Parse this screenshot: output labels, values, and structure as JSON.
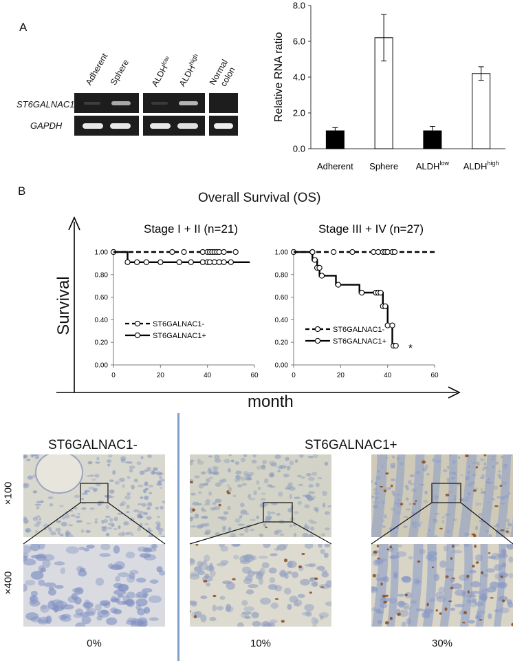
{
  "panel_a": {
    "letter": "A",
    "gel": {
      "lanes": [
        "Adherent",
        "Sphere",
        "ALDH",
        "ALDH"
      ],
      "lane_sups": [
        "low",
        "high"
      ],
      "normal_label_1": "Normal",
      "normal_label_2": "colon",
      "genes": [
        "ST6GALNAC1",
        "GAPDH"
      ]
    }
  },
  "panel_b": {
    "letter": "B",
    "title": "Overall Survival (OS)",
    "y_axis_label": "Survival",
    "x_axis_label": "month"
  },
  "chart_data": [
    {
      "type": "bar",
      "categories": [
        "Adherent",
        "Sphere",
        "ALDHlow",
        "ALDHhigh"
      ],
      "category_parts": [
        [
          "Adherent",
          ""
        ],
        [
          "Sphere",
          ""
        ],
        [
          "ALDH",
          "low"
        ],
        [
          "ALDH",
          "high"
        ]
      ],
      "values": [
        1.0,
        6.2,
        1.0,
        4.2
      ],
      "errors": [
        0.18,
        1.3,
        0.25,
        0.38
      ],
      "fills": [
        "#000000",
        "#ffffff",
        "#000000",
        "#ffffff"
      ],
      "ylabel": "Relative RNA ratio",
      "ylim": [
        0,
        8
      ],
      "yticks": [
        "0.0",
        "2.0",
        "4.0",
        "6.0",
        "8.0"
      ]
    },
    {
      "type": "line",
      "title": "Stage I + II (n=21)",
      "xlim": [
        0,
        60
      ],
      "ylim": [
        0,
        1
      ],
      "xticks": [
        "0",
        "20",
        "40",
        "60"
      ],
      "yticks": [
        "0.00",
        "0.20",
        "0.40",
        "0.60",
        "0.80",
        "1.00"
      ],
      "legend": [
        "ST6GALNAC1-",
        "ST6GALNAC1+"
      ],
      "series": [
        {
          "name": "ST6GALNAC1-",
          "style": "dashed",
          "steps": [
            [
              0,
              1.0
            ],
            [
              52,
              1.0
            ]
          ],
          "censored": [
            [
              0,
              1.0
            ],
            [
              25,
              1.0
            ],
            [
              30,
              1.0
            ],
            [
              38,
              1.0
            ],
            [
              40,
              1.0
            ],
            [
              41,
              1.0
            ],
            [
              42,
              1.0
            ],
            [
              43,
              1.0
            ],
            [
              44,
              1.0
            ],
            [
              45,
              1.0
            ],
            [
              47,
              1.0
            ],
            [
              52,
              1.0
            ]
          ]
        },
        {
          "name": "ST6GALNAC1+",
          "style": "solid",
          "steps": [
            [
              0,
              1.0
            ],
            [
              6,
              1.0
            ],
            [
              6,
              0.91
            ],
            [
              58,
              0.91
            ]
          ],
          "censored": [
            [
              6,
              0.91
            ],
            [
              10,
              0.91
            ],
            [
              14,
              0.91
            ],
            [
              20,
              0.91
            ],
            [
              28,
              0.91
            ],
            [
              33,
              0.91
            ],
            [
              38,
              0.91
            ],
            [
              40,
              0.91
            ],
            [
              41,
              0.91
            ],
            [
              43,
              0.91
            ],
            [
              45,
              0.91
            ],
            [
              47,
              0.91
            ],
            [
              50,
              0.91
            ]
          ]
        }
      ]
    },
    {
      "type": "line",
      "title": "Stage III + IV (n=27)",
      "xlim": [
        0,
        60
      ],
      "ylim": [
        0,
        1
      ],
      "xticks": [
        "0",
        "20",
        "40",
        "60"
      ],
      "yticks": [
        "0.00",
        "0.20",
        "0.40",
        "0.60",
        "0.80",
        "1.00"
      ],
      "legend": [
        "ST6GALNAC1-",
        "ST6GALNAC1+"
      ],
      "annotation": "*",
      "series": [
        {
          "name": "ST6GALNAC1-",
          "style": "dashed",
          "steps": [
            [
              0,
              1.0
            ],
            [
              60,
              1.0
            ]
          ],
          "censored": [
            [
              0,
              1.0
            ],
            [
              8,
              1.0
            ],
            [
              17,
              1.0
            ],
            [
              25,
              1.0
            ],
            [
              34,
              1.0
            ],
            [
              36,
              1.0
            ],
            [
              38,
              1.0
            ],
            [
              39,
              1.0
            ],
            [
              40,
              1.0
            ],
            [
              42,
              1.0
            ],
            [
              43,
              1.0
            ]
          ]
        },
        {
          "name": "ST6GALNAC1+",
          "style": "solid",
          "steps": [
            [
              0,
              1.0
            ],
            [
              8,
              1.0
            ],
            [
              8,
              0.93
            ],
            [
              10,
              0.93
            ],
            [
              10,
              0.86
            ],
            [
              11,
              0.86
            ],
            [
              11,
              0.79
            ],
            [
              18,
              0.79
            ],
            [
              18,
              0.71
            ],
            [
              28,
              0.71
            ],
            [
              28,
              0.64
            ],
            [
              38,
              0.64
            ],
            [
              38,
              0.52
            ],
            [
              40,
              0.52
            ],
            [
              40,
              0.35
            ],
            [
              42,
              0.35
            ],
            [
              42,
              0.17
            ],
            [
              44,
              0.17
            ]
          ],
          "censored": [
            [
              8,
              1.0
            ],
            [
              9,
              0.93
            ],
            [
              10,
              0.86
            ],
            [
              11,
              0.86
            ],
            [
              12,
              0.79
            ],
            [
              19,
              0.71
            ],
            [
              29,
              0.64
            ],
            [
              35,
              0.64
            ],
            [
              36,
              0.64
            ],
            [
              37,
              0.64
            ],
            [
              38,
              0.52
            ],
            [
              39,
              0.52
            ],
            [
              40,
              0.35
            ],
            [
              42,
              0.35
            ],
            [
              42.5,
              0.17
            ],
            [
              43.5,
              0.17
            ]
          ]
        }
      ]
    }
  ],
  "panel_c": {
    "neg_title": "ST6GALNAC1-",
    "pos_title": "ST6GALNAC1+",
    "mag_low": "×100",
    "mag_high": "×400",
    "captions": [
      "0%",
      "10%",
      "30%"
    ]
  },
  "colors": {
    "divider": "#7f9fc8",
    "tissue_bg": "#d6d6c8",
    "tissue_blue": "#8c9cc4",
    "stain_brown": "#8a4a1e"
  }
}
